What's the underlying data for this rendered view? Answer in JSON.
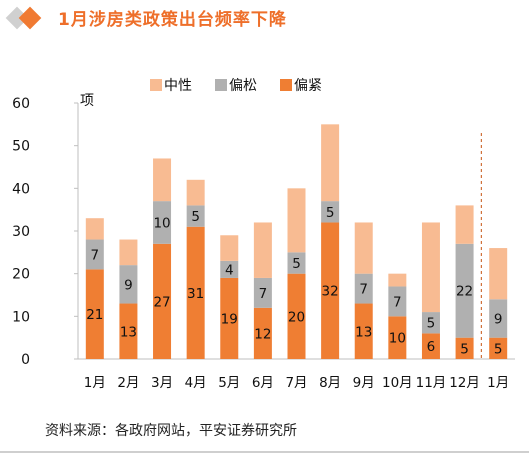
{
  "header": {
    "title": "1月涉房类政策出台频率下降"
  },
  "source": "资料来源：各政府网站，平安证券研究所",
  "colors": {
    "accent": "#ee6f2a",
    "neutral": "#f8bb92",
    "loose": "#b0b0b0",
    "tight": "#ef7e33",
    "divider": "#d0703a",
    "bullet": "#d0d0d0"
  },
  "chart_data": {
    "type": "bar",
    "stacked": true,
    "categories": [
      "1月",
      "2月",
      "3月",
      "4月",
      "5月",
      "6月",
      "7月",
      "8月",
      "9月",
      "10月",
      "11月",
      "12月",
      "1月"
    ],
    "series": [
      {
        "name": "偏紧",
        "values": [
          21,
          13,
          27,
          31,
          19,
          12,
          20,
          32,
          13,
          10,
          6,
          5,
          5
        ],
        "color": "#ef7e33",
        "labels": [
          "21",
          "13",
          "27",
          "31",
          "19",
          "12",
          "20",
          "32",
          "13",
          "10",
          "6",
          "5",
          "5"
        ]
      },
      {
        "name": "偏松",
        "values": [
          7,
          9,
          10,
          5,
          4,
          7,
          5,
          5,
          7,
          7,
          5,
          22,
          9
        ],
        "color": "#b0b0b0",
        "labels": [
          "7",
          "9",
          "10",
          "5",
          "4",
          "7",
          "5",
          "5",
          "7",
          "7",
          "5",
          "22",
          "9"
        ]
      },
      {
        "name": "中性",
        "values": [
          5,
          6,
          10,
          6,
          6,
          13,
          15,
          18,
          12,
          3,
          21,
          9,
          12
        ],
        "color": "#f8bb92",
        "labels": []
      }
    ],
    "legend_order": [
      "中性",
      "偏松",
      "偏紧"
    ],
    "ylabel": "项",
    "yticks": [
      "0",
      "10",
      "20",
      "30",
      "40",
      "50",
      "60"
    ],
    "ylim": [
      0,
      60
    ],
    "grid": false,
    "legend_position": "top-center",
    "divider_before_index": 12
  }
}
